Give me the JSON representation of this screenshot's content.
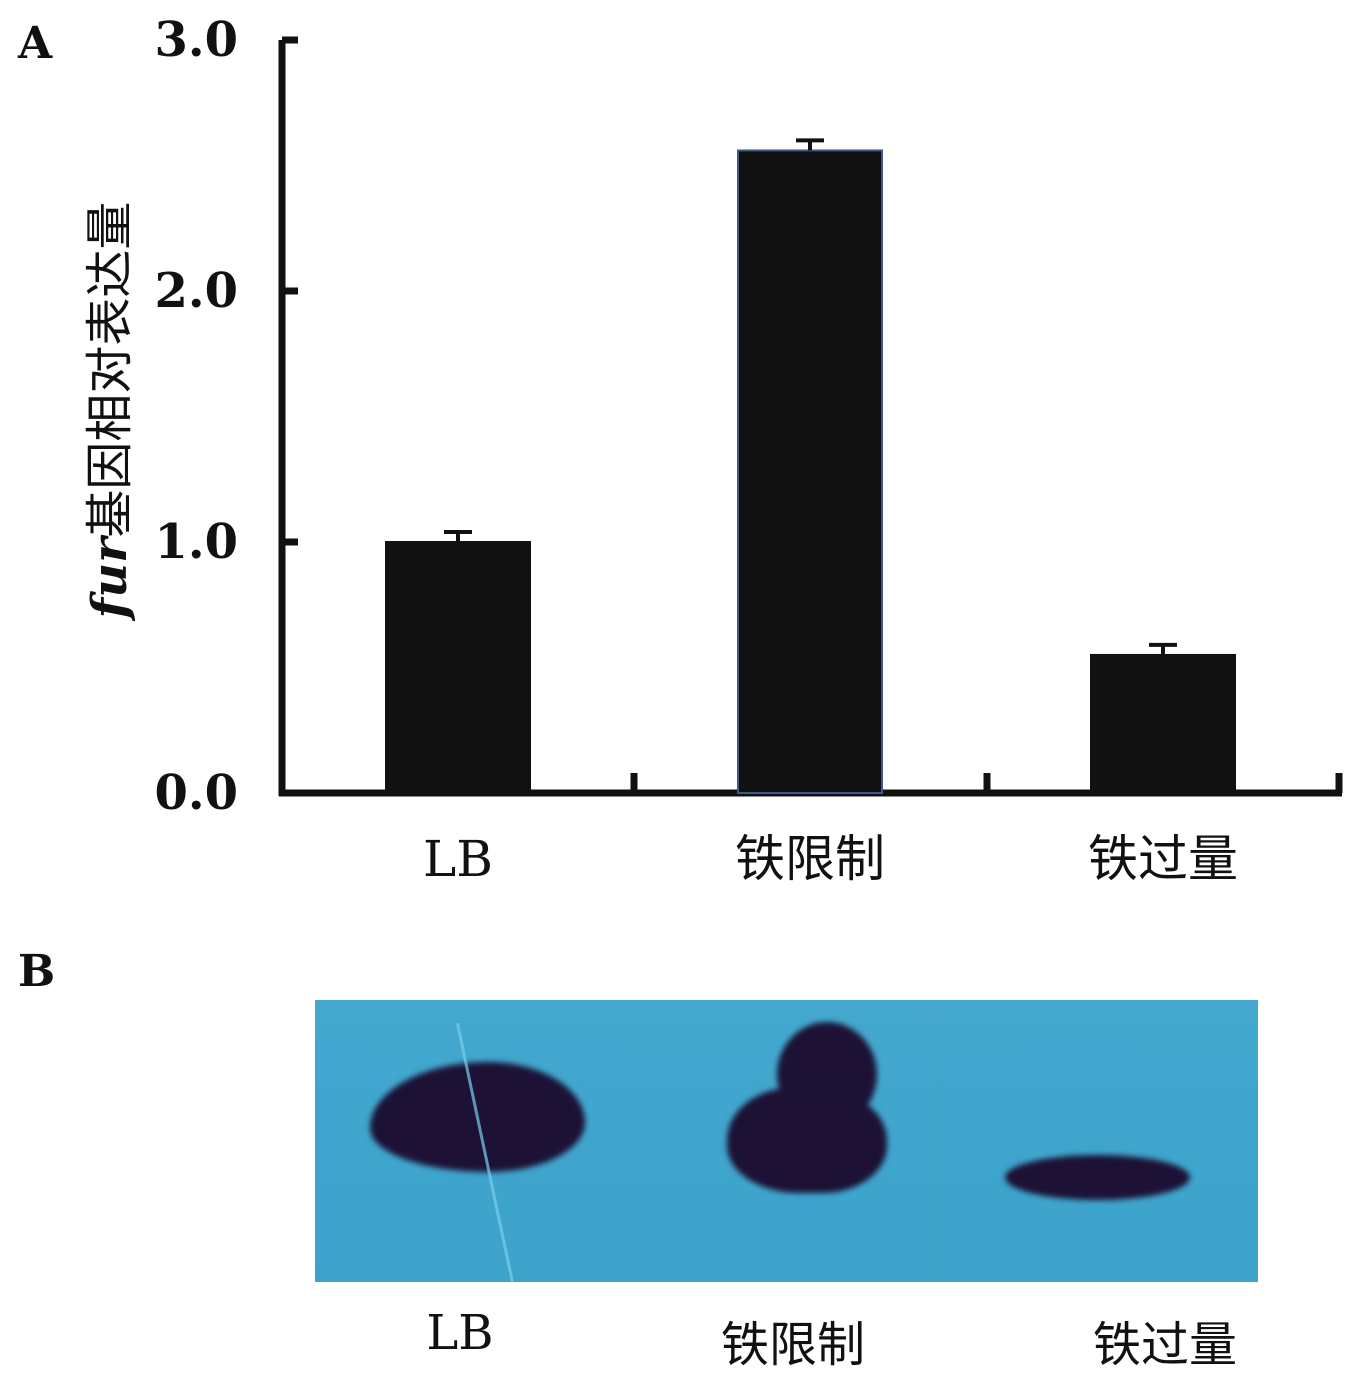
{
  "panel_labels": {
    "a": "A",
    "b": "B"
  },
  "chart_data": {
    "type": "bar",
    "categories": [
      "LB",
      "铁限制",
      "铁过量"
    ],
    "values": [
      1.0,
      2.56,
      0.55
    ],
    "errors": [
      0.04,
      0.04,
      0.04
    ],
    "ylabel_gene": "fur",
    "ylabel_rest": "基因相对表达量",
    "xlabel": "",
    "ylim": [
      0,
      3.0
    ],
    "yticks": [
      "0.0",
      "1.0",
      "2.0",
      "3.0"
    ],
    "bar_color": "#111111"
  },
  "blot": {
    "background_color": "#41a6ce",
    "band_color": "#1d1236",
    "lanes": [
      "LB",
      "铁限制",
      "铁过量"
    ]
  }
}
